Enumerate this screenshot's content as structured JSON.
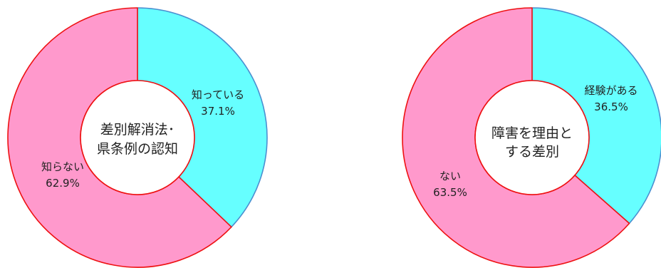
{
  "chart_data": [
    {
      "type": "pie",
      "center_label": [
        "差別解消法･",
        "県条例の認知"
      ],
      "slices": [
        {
          "label": "知っている",
          "value_text": "37.1%",
          "value": 37.1,
          "color": "#66ffff"
        },
        {
          "label": "知らない",
          "value_text": "62.9%",
          "value": 62.9,
          "color": "#ff99cc"
        }
      ]
    },
    {
      "type": "pie",
      "center_label": [
        "障害を理由と",
        "する差別"
      ],
      "slices": [
        {
          "label": "経験がある",
          "value_text": "36.5%",
          "value": 36.5,
          "color": "#66ffff"
        },
        {
          "label": "ない",
          "value_text": "63.5%",
          "value": 63.5,
          "color": "#ff99cc"
        }
      ]
    }
  ],
  "colors": {
    "slice_border_cyan": "#4a8fd0",
    "slice_border_pink": "#ee1111",
    "hole_border": "#ee1111"
  }
}
